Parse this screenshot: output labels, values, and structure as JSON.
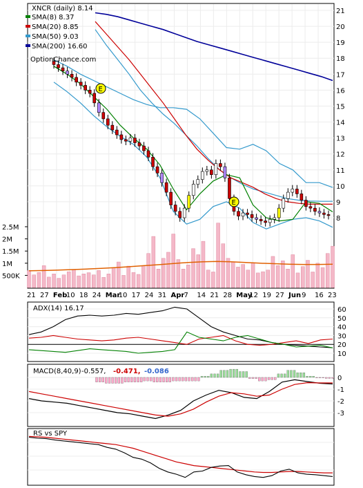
{
  "chart_data": [
    {
      "type": "candlestick",
      "symbol": "XNCR",
      "title": "XNCR (daily) 8.14",
      "watermark": "OptionChance.com",
      "x_tick_labels": [
        "21",
        "27",
        "Feb",
        "10",
        "18",
        "24",
        "Mar",
        "10",
        "17",
        "24",
        "31",
        "Apr",
        "7",
        "14",
        "21",
        "28",
        "May",
        "12",
        "19",
        "27",
        "Jun",
        "9",
        "16",
        "23"
      ],
      "x_month_labels": [
        "Feb",
        "Mar",
        "Apr",
        "May",
        "Jun"
      ],
      "y_tick_labels": [
        "21",
        "20",
        "19",
        "18",
        "17",
        "16",
        "15",
        "14",
        "13",
        "12",
        "11",
        "10",
        "9",
        "8"
      ],
      "ylim": [
        7.3,
        21.2
      ],
      "legend": [
        {
          "label": "SMA(8) 8.37",
          "color": "#008000"
        },
        {
          "label": "SMA(20) 8.85",
          "color": "#cc0000"
        },
        {
          "label": "SMA(50) 9.03",
          "color": "#3399cc"
        },
        {
          "label": "SMA(200) 16.60",
          "color": "#000099"
        }
      ],
      "series": [
        {
          "name": "SMA(200)",
          "color": "#000099",
          "values": [
            20.85,
            20.75,
            20.6,
            20.4,
            20.2,
            20.0,
            19.8,
            19.55,
            19.3,
            19.05,
            18.85,
            18.65,
            18.45,
            18.25,
            18.05,
            17.85,
            17.65,
            17.45,
            17.25,
            17.05,
            16.85,
            16.6
          ]
        },
        {
          "name": "SMA(50)",
          "color": "#3399cc",
          "values": [
            19.8,
            18.8,
            17.9,
            17.0,
            16.0,
            15.2,
            14.5,
            13.9,
            13.2,
            12.5,
            11.7,
            11.0,
            10.5,
            10.1,
            9.8,
            9.6,
            9.4,
            9.2,
            9.1,
            9.05,
            9.03,
            9.03
          ]
        },
        {
          "name": "SMA(20)",
          "color": "#cc0000",
          "values": [
            20.3,
            19.5,
            18.7,
            17.9,
            17.0,
            16.1,
            15.2,
            14.2,
            13.2,
            12.3,
            11.6,
            11.0,
            10.5,
            10.2,
            9.9,
            9.5,
            9.2,
            9.0,
            8.9,
            8.85,
            8.85,
            8.85
          ]
        },
        {
          "name": "SMA(8)",
          "color": "#008000",
          "values": [
            17.5,
            17.0,
            16.4,
            15.6,
            14.8,
            13.8,
            13.0,
            12.3,
            11.3,
            9.8,
            8.5,
            9.5,
            10.3,
            10.7,
            10.5,
            8.8,
            8.0,
            7.8,
            7.9,
            9.0,
            8.9,
            8.37
          ]
        }
      ],
      "closes": [
        17.6,
        17.4,
        17.2,
        17.0,
        16.8,
        16.5,
        16.3,
        16.0,
        15.8,
        15.2,
        14.6,
        14.2,
        13.8,
        13.5,
        13.2,
        12.9,
        12.8,
        13.0,
        12.7,
        12.5,
        12.2,
        11.8,
        11.2,
        10.8,
        10.2,
        9.6,
        8.8,
        8.4,
        8.0,
        8.6,
        9.4,
        10.1,
        10.4,
        10.9,
        11.0,
        10.7,
        11.4,
        11.2,
        10.5,
        9.2,
        8.4,
        8.1,
        8.3,
        8.2,
        8.0,
        7.9,
        7.8,
        7.7,
        7.9,
        8.0,
        8.6,
        9.2,
        9.6,
        9.8,
        9.5,
        9.1,
        8.7,
        8.6,
        8.4,
        8.3,
        8.2,
        8.14
      ],
      "bands": {
        "upper": [
          17.9,
          17.5,
          17.0,
          16.6,
          16.2,
          15.8,
          15.4,
          15.1,
          14.9,
          14.9,
          14.8,
          14.2,
          13.3,
          12.4,
          12.3,
          12.6,
          12.2,
          11.4,
          11.0,
          10.2,
          10.2,
          9.9
        ],
        "lower": [
          16.5,
          15.9,
          15.2,
          14.4,
          13.7,
          13.1,
          12.6,
          11.8,
          10.5,
          8.4,
          7.6,
          7.9,
          8.7,
          9.0,
          8.6,
          7.7,
          7.3,
          7.6,
          7.9,
          8.0,
          7.8,
          7.4
        ]
      },
      "earnings_markers": [
        "E",
        "E"
      ]
    },
    {
      "type": "bar",
      "name": "Volume",
      "y_tick_labels": [
        "2.5M",
        "2M",
        "1.5M",
        "1M",
        "500K"
      ],
      "ylim": [
        0,
        2800000
      ],
      "values": [
        700000,
        520000,
        620000,
        900000,
        430000,
        560000,
        380000,
        520000,
        650000,
        740000,
        480000,
        560000,
        610000,
        520000,
        700000,
        420000,
        560000,
        820000,
        1050000,
        500000,
        880000,
        620000,
        540000,
        900000,
        1400000,
        2100000,
        760000,
        1200000,
        1450000,
        2200000,
        1150000,
        760000,
        930000,
        1600000,
        1350000,
        1900000,
        720000,
        640000,
        2650000,
        1800000,
        1200000,
        1050000,
        840000,
        950000,
        720000,
        1000000,
        600000,
        650000,
        720000,
        1280000,
        900000,
        1100000,
        760000,
        1350000,
        600000,
        860000,
        1120000,
        640000,
        1000000,
        820000,
        1400000,
        1700000
      ],
      "moving_average": [
        690000,
        700000,
        720000,
        740000,
        760000,
        790000,
        820000,
        860000,
        900000,
        940000,
        990000,
        1030000,
        1060000,
        1070000,
        1060000,
        1030000,
        1000000,
        980000,
        960000,
        950000,
        950000,
        960000
      ]
    },
    {
      "type": "line",
      "name": "ADX",
      "label": "ADX(14) 16.17",
      "y_tick_labels": [
        "60",
        "50",
        "40",
        "30",
        "20",
        "10"
      ],
      "ylim": [
        5,
        65
      ],
      "series": [
        {
          "name": "ADX",
          "color": "#000000",
          "values": [
            31,
            34,
            40,
            48,
            52,
            53,
            52,
            53,
            55,
            54,
            56,
            58,
            62,
            60,
            50,
            40,
            34,
            30,
            26,
            25,
            22,
            20,
            19,
            18,
            17,
            16.17
          ]
        },
        {
          "name": "+DI",
          "color": "#cc0000",
          "values": [
            27,
            28,
            30,
            28,
            26,
            25,
            24,
            25,
            27,
            28,
            26,
            24,
            22,
            20,
            26,
            28,
            30,
            24,
            20,
            19,
            20,
            22,
            24,
            21,
            25,
            26
          ]
        },
        {
          "name": "-DI",
          "color": "#008000",
          "values": [
            14,
            13,
            12,
            11,
            13,
            15,
            14,
            13,
            12,
            10,
            11,
            12,
            14,
            34,
            28,
            26,
            24,
            28,
            30,
            26,
            22,
            20,
            17,
            18,
            19,
            16
          ]
        }
      ]
    },
    {
      "type": "line",
      "name": "MACD",
      "label": "MACD(8,40,9)",
      "values_text": [
        "-0.557,",
        "-0.471,",
        "-0.086"
      ],
      "y_tick_labels": [
        "0",
        "-1",
        "-2",
        "-3"
      ],
      "ylim": [
        -3.8,
        0.6
      ],
      "series": [
        {
          "name": "MACD",
          "color": "#000000",
          "values": [
            -1.8,
            -2.0,
            -2.1,
            -2.2,
            -2.4,
            -2.6,
            -2.8,
            -3.0,
            -3.1,
            -3.3,
            -3.5,
            -3.2,
            -2.8,
            -2.0,
            -1.5,
            -1.1,
            -1.3,
            -1.7,
            -1.8,
            -1.2,
            -0.4,
            -0.2,
            -0.35,
            -0.5,
            -0.557
          ]
        },
        {
          "name": "Signal",
          "color": "#cc0000",
          "values": [
            -1.2,
            -1.4,
            -1.6,
            -1.8,
            -2.0,
            -2.2,
            -2.4,
            -2.6,
            -2.8,
            -3.0,
            -3.2,
            -3.3,
            -3.1,
            -2.7,
            -2.1,
            -1.6,
            -1.3,
            -1.4,
            -1.6,
            -1.5,
            -1.0,
            -0.6,
            -0.45,
            -0.47,
            -0.471
          ]
        },
        {
          "name": "Histogram",
          "color": "#ff99cc",
          "values": [
            -0.4,
            -0.5,
            -0.5,
            -0.4,
            -0.4,
            -0.3,
            -0.4,
            -0.4,
            -0.3,
            -0.3,
            -0.3,
            0.1,
            0.3,
            0.6,
            0.7,
            0.5,
            -0.1,
            -0.3,
            -0.2,
            0.3,
            0.6,
            0.4,
            0.1,
            -0.05,
            -0.086
          ]
        }
      ]
    },
    {
      "type": "line",
      "name": "RS vs SPY",
      "label": "RS vs SPY",
      "series": [
        {
          "name": "RS",
          "color": "#000000",
          "values": [
            96,
            94,
            93,
            90,
            88,
            86,
            84,
            82,
            80,
            74,
            70,
            62,
            52,
            48,
            40,
            28,
            20,
            15,
            8,
            20,
            22,
            30,
            33,
            34,
            20,
            14,
            10,
            8,
            12,
            22,
            26,
            18,
            15,
            14,
            12,
            10
          ]
        },
        {
          "name": "RS MA",
          "color": "#cc0000",
          "values": [
            98,
            97,
            96,
            94,
            92,
            90,
            88,
            86,
            84,
            82,
            80,
            76,
            72,
            66,
            60,
            54,
            48,
            42,
            38,
            34,
            32,
            30,
            28,
            26,
            24,
            22,
            20,
            19,
            19,
            20,
            21,
            21,
            20,
            19,
            18,
            18
          ]
        }
      ]
    }
  ]
}
